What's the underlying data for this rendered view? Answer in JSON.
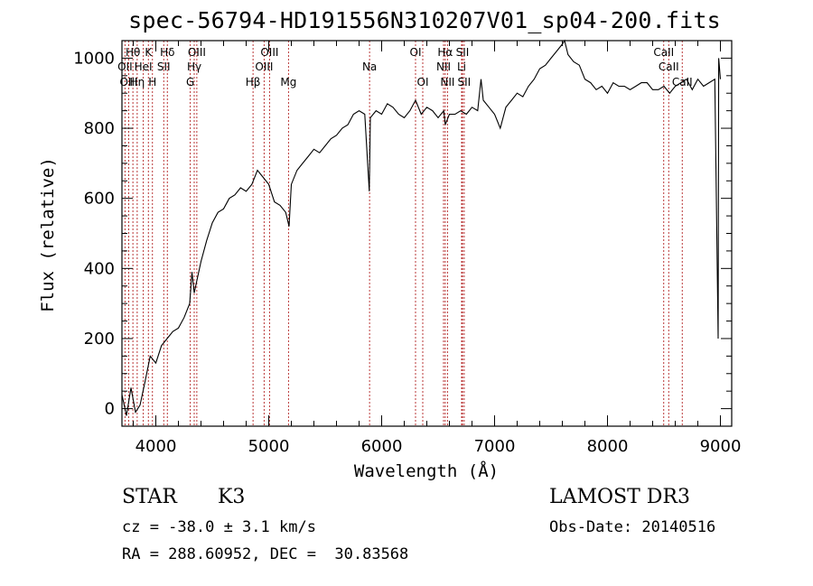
{
  "chart_data": {
    "type": "line",
    "title": "spec-56794-HD191556N310207V01_sp04-200.fits",
    "xlabel": "Wavelength (Å)",
    "ylabel": "Flux (relative)",
    "xlim": [
      3700,
      9100
    ],
    "ylim": [
      -50,
      1050
    ],
    "x_ticks": [
      4000,
      5000,
      6000,
      7000,
      8000,
      9000
    ],
    "y_ticks": [
      0,
      200,
      400,
      600,
      800,
      1000
    ],
    "grid": false,
    "series": [
      {
        "x": [
          3700,
          3740,
          3780,
          3820,
          3860,
          3900,
          3950,
          4000,
          4050,
          4100,
          4150,
          4200,
          4250,
          4300,
          4320,
          4340,
          4360,
          4400,
          4450,
          4500,
          4550,
          4600,
          4650,
          4700,
          4750,
          4800,
          4850,
          4900,
          4950,
          5000,
          5050,
          5100,
          5150,
          5180,
          5200,
          5250,
          5300,
          5350,
          5400,
          5450,
          5500,
          5550,
          5600,
          5650,
          5700,
          5750,
          5800,
          5850,
          5890,
          5900,
          5950,
          6000,
          6050,
          6100,
          6150,
          6200,
          6250,
          6300,
          6350,
          6400,
          6450,
          6500,
          6550,
          6563,
          6600,
          6650,
          6700,
          6750,
          6800,
          6850,
          6880,
          6900,
          6950,
          7000,
          7050,
          7100,
          7150,
          7200,
          7250,
          7300,
          7350,
          7400,
          7450,
          7500,
          7550,
          7600,
          7620,
          7650,
          7700,
          7750,
          7800,
          7850,
          7900,
          7950,
          8000,
          8050,
          8100,
          8150,
          8200,
          8250,
          8300,
          8350,
          8400,
          8450,
          8500,
          8550,
          8600,
          8650,
          8700,
          8750,
          8800,
          8850,
          8900,
          8950,
          8980,
          8985,
          9000
        ],
        "y": [
          40,
          -20,
          60,
          -10,
          10,
          70,
          150,
          130,
          180,
          200,
          220,
          230,
          260,
          300,
          390,
          330,
          360,
          420,
          480,
          530,
          560,
          570,
          600,
          610,
          630,
          620,
          640,
          680,
          660,
          640,
          590,
          580,
          560,
          520,
          640,
          680,
          700,
          720,
          740,
          730,
          750,
          770,
          780,
          800,
          810,
          840,
          850,
          840,
          620,
          830,
          850,
          840,
          870,
          860,
          840,
          830,
          850,
          880,
          840,
          860,
          850,
          830,
          850,
          810,
          840,
          840,
          850,
          840,
          860,
          850,
          940,
          880,
          860,
          840,
          800,
          860,
          880,
          900,
          890,
          920,
          940,
          970,
          980,
          1000,
          1020,
          1040,
          1050,
          1010,
          990,
          980,
          940,
          930,
          910,
          920,
          900,
          930,
          920,
          920,
          910,
          920,
          930,
          930,
          910,
          910,
          920,
          900,
          920,
          930,
          940,
          910,
          940,
          920,
          930,
          940,
          200,
          1000,
          940
        ]
      }
    ],
    "lines": [
      {
        "name": "Hθ",
        "x": 3797
      },
      {
        "name": "OII",
        "x": 3727
      },
      {
        "name": "OIII",
        "x": 3760
      },
      {
        "name": "HeI",
        "x": 3889
      },
      {
        "name": "K",
        "x": 3934
      },
      {
        "name": "H",
        "x": 3970
      },
      {
        "name": "Hη",
        "x": 3835
      },
      {
        "name": "SII",
        "x": 4070
      },
      {
        "name": "Hδ",
        "x": 4102
      },
      {
        "name": "OIII",
        "x": 4363
      },
      {
        "name": "Hγ",
        "x": 4340
      },
      {
        "name": "G",
        "x": 4305
      },
      {
        "name": "Hβ",
        "x": 4861
      },
      {
        "name": "OIII",
        "x": 4959
      },
      {
        "name": "OIII",
        "x": 5007
      },
      {
        "name": "Mg",
        "x": 5175
      },
      {
        "name": "Na",
        "x": 5893
      },
      {
        "name": "OI",
        "x": 6300
      },
      {
        "name": "OI",
        "x": 6364
      },
      {
        "name": "Hα",
        "x": 6563
      },
      {
        "name": "NII",
        "x": 6548
      },
      {
        "name": "NII",
        "x": 6583
      },
      {
        "name": "Li",
        "x": 6708
      },
      {
        "name": "SII",
        "x": 6716
      },
      {
        "name": "SII",
        "x": 6731
      },
      {
        "name": "CaII",
        "x": 8498
      },
      {
        "name": "CaII",
        "x": 8542
      },
      {
        "name": "CaII",
        "x": 8662
      }
    ],
    "line_labels": [
      {
        "text": "Hθ",
        "x": 3797,
        "row": 1
      },
      {
        "text": "K",
        "x": 3934,
        "row": 1
      },
      {
        "text": "Hδ",
        "x": 4102,
        "row": 1
      },
      {
        "text": "OIII",
        "x": 4363,
        "row": 1
      },
      {
        "text": "OIII",
        "x": 5007,
        "row": 1
      },
      {
        "text": "OI",
        "x": 6300,
        "row": 1
      },
      {
        "text": "Hα",
        "x": 6563,
        "row": 1
      },
      {
        "text": "SII",
        "x": 6716,
        "row": 1
      },
      {
        "text": "CaII",
        "x": 8498,
        "row": 1
      },
      {
        "text": "OII",
        "x": 3727,
        "row": 2
      },
      {
        "text": "HeI",
        "x": 3889,
        "row": 2
      },
      {
        "text": "SII",
        "x": 4070,
        "row": 2
      },
      {
        "text": "Hγ",
        "x": 4340,
        "row": 2
      },
      {
        "text": "OIII",
        "x": 4959,
        "row": 2
      },
      {
        "text": "Na",
        "x": 5893,
        "row": 2
      },
      {
        "text": "NII",
        "x": 6548,
        "row": 2
      },
      {
        "text": "Li",
        "x": 6708,
        "row": 2
      },
      {
        "text": "CaII",
        "x": 8542,
        "row": 2
      },
      {
        "text": "OIII",
        "x": 3760,
        "row": 3
      },
      {
        "text": "Hη",
        "x": 3835,
        "row": 3
      },
      {
        "text": "H",
        "x": 3970,
        "row": 3
      },
      {
        "text": "G",
        "x": 4305,
        "row": 3
      },
      {
        "text": "Hβ",
        "x": 4861,
        "row": 3
      },
      {
        "text": "Mg",
        "x": 5175,
        "row": 3
      },
      {
        "text": "OI",
        "x": 6364,
        "row": 3
      },
      {
        "text": "NII",
        "x": 6583,
        "row": 3
      },
      {
        "text": "SII",
        "x": 6731,
        "row": 3
      },
      {
        "text": "CaII",
        "x": 8662,
        "row": 3
      }
    ]
  },
  "info": {
    "object_class": "STAR",
    "subclass": "K3",
    "survey": "LAMOST DR3",
    "cz": "cz = -38.0 ± 3.1 km/s",
    "obs_date": "Obs-Date: 20140516",
    "coords": "RA = 288.60952, DEC =  30.83568"
  },
  "colors": {
    "spectrum": "#000000",
    "line_markers": "#b22222"
  }
}
